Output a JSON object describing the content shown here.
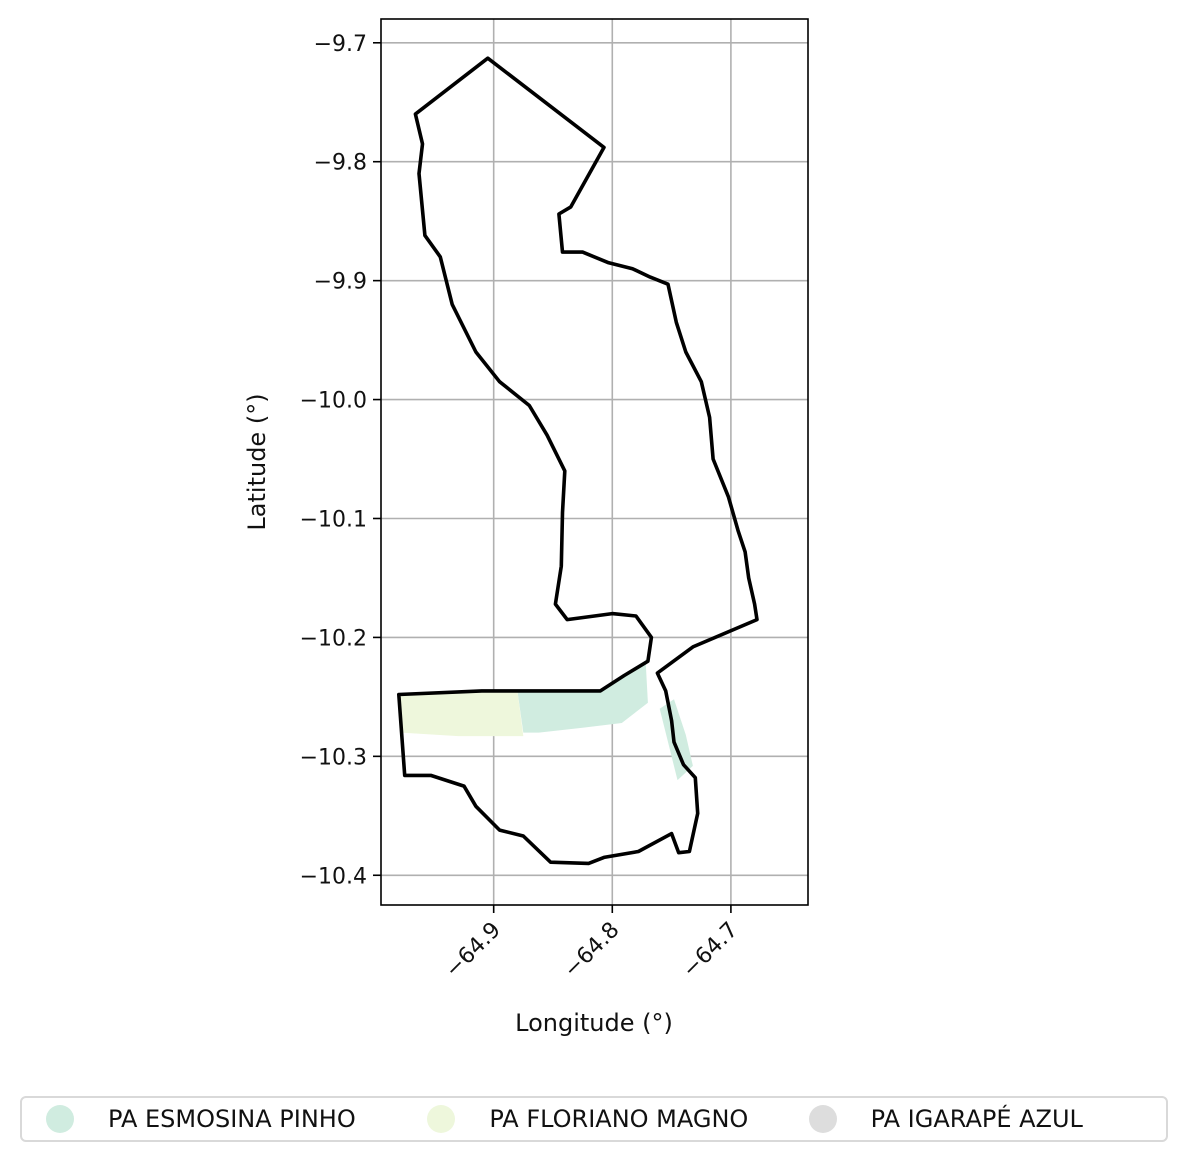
{
  "map": {
    "xlabel": "Longitude (°)",
    "ylabel": "Latitude (°)",
    "xlim": [
      -64.995,
      -64.635
    ],
    "ylim": [
      -10.425,
      -9.68
    ],
    "x_ticks": [
      "−64.9",
      "−64.8",
      "−64.7"
    ],
    "x_tick_values": [
      -64.9,
      -64.8,
      -64.7
    ],
    "y_ticks": [
      "−9.7",
      "−9.8",
      "−9.9",
      "−10.0",
      "−10.1",
      "−10.2",
      "−10.3",
      "−10.4"
    ],
    "y_tick_values": [
      -9.7,
      -9.8,
      -9.9,
      -10.0,
      -10.1,
      -10.2,
      -10.3,
      -10.4
    ],
    "grid": true,
    "outline_color": "#000000",
    "outline": [
      [
        -64.905,
        -9.713
      ],
      [
        -64.807,
        -9.788
      ],
      [
        -64.835,
        -9.838
      ],
      [
        -64.845,
        -9.844
      ],
      [
        -64.842,
        -9.876
      ],
      [
        -64.825,
        -9.876
      ],
      [
        -64.803,
        -9.885
      ],
      [
        -64.783,
        -9.89
      ],
      [
        -64.768,
        -9.897
      ],
      [
        -64.753,
        -9.903
      ],
      [
        -64.746,
        -9.935
      ],
      [
        -64.738,
        -9.96
      ],
      [
        -64.725,
        -9.985
      ],
      [
        -64.718,
        -10.015
      ],
      [
        -64.715,
        -10.05
      ],
      [
        -64.702,
        -10.082
      ],
      [
        -64.694,
        -10.11
      ],
      [
        -64.688,
        -10.128
      ],
      [
        -64.685,
        -10.15
      ],
      [
        -64.68,
        -10.172
      ],
      [
        -64.678,
        -10.185
      ],
      [
        -64.732,
        -10.208
      ],
      [
        -64.762,
        -10.23
      ],
      [
        -64.755,
        -10.245
      ],
      [
        -64.75,
        -10.27
      ],
      [
        -64.748,
        -10.288
      ],
      [
        -64.74,
        -10.307
      ],
      [
        -64.73,
        -10.318
      ],
      [
        -64.728,
        -10.348
      ],
      [
        -64.735,
        -10.38
      ],
      [
        -64.744,
        -10.381
      ],
      [
        -64.75,
        -10.365
      ],
      [
        -64.778,
        -10.38
      ],
      [
        -64.807,
        -10.385
      ],
      [
        -64.82,
        -10.39
      ],
      [
        -64.852,
        -10.389
      ],
      [
        -64.875,
        -10.367
      ],
      [
        -64.895,
        -10.362
      ],
      [
        -64.915,
        -10.342
      ],
      [
        -64.925,
        -10.325
      ],
      [
        -64.953,
        -10.316
      ],
      [
        -64.975,
        -10.316
      ],
      [
        -64.98,
        -10.248
      ],
      [
        -64.91,
        -10.245
      ],
      [
        -64.81,
        -10.245
      ],
      [
        -64.79,
        -10.232
      ],
      [
        -64.77,
        -10.22
      ],
      [
        -64.767,
        -10.2
      ],
      [
        -64.78,
        -10.182
      ],
      [
        -64.8,
        -10.18
      ],
      [
        -64.838,
        -10.185
      ],
      [
        -64.848,
        -10.172
      ],
      [
        -64.843,
        -10.14
      ],
      [
        -64.842,
        -10.095
      ],
      [
        -64.84,
        -10.06
      ],
      [
        -64.855,
        -10.03
      ],
      [
        -64.87,
        -10.005
      ],
      [
        -64.895,
        -9.985
      ],
      [
        -64.915,
        -9.96
      ],
      [
        -64.935,
        -9.92
      ],
      [
        -64.945,
        -9.88
      ],
      [
        -64.958,
        -9.862
      ],
      [
        -64.963,
        -9.81
      ],
      [
        -64.96,
        -9.785
      ],
      [
        -64.966,
        -9.76
      ],
      [
        -64.905,
        -9.713
      ]
    ],
    "areas": [
      {
        "name": "PA ESMOSINA PINHO",
        "color": "#d0ece0",
        "polygons": [
          [
            [
              -64.88,
              -10.245
            ],
            [
              -64.81,
              -10.245
            ],
            [
              -64.79,
              -10.232
            ],
            [
              -64.77,
              -10.22
            ],
            [
              -64.772,
              -10.218
            ],
            [
              -64.77,
              -10.255
            ],
            [
              -64.792,
              -10.272
            ],
            [
              -64.825,
              -10.276
            ],
            [
              -64.862,
              -10.28
            ],
            [
              -64.875,
              -10.28
            ]
          ],
          [
            [
              -64.76,
              -10.26
            ],
            [
              -64.748,
              -10.252
            ],
            [
              -64.738,
              -10.282
            ],
            [
              -64.732,
              -10.308
            ],
            [
              -64.745,
              -10.32
            ]
          ]
        ]
      },
      {
        "name": "PA FLORIANO MAGNO",
        "color": "#eef7dc",
        "polygons": [
          [
            [
              -64.98,
              -10.248
            ],
            [
              -64.88,
              -10.245
            ],
            [
              -64.875,
              -10.283
            ],
            [
              -64.93,
              -10.283
            ],
            [
              -64.978,
              -10.28
            ]
          ]
        ]
      },
      {
        "name": "PA IGARAPÉ AZUL",
        "color": "#dddddd",
        "polygons": []
      }
    ]
  },
  "legend": [
    {
      "label": "PA ESMOSINA PINHO",
      "color": "#d0ece0"
    },
    {
      "label": "PA FLORIANO MAGNO",
      "color": "#eef7dc"
    },
    {
      "label": "PA IGARAPÉ AZUL",
      "color": "#dddddd"
    }
  ]
}
